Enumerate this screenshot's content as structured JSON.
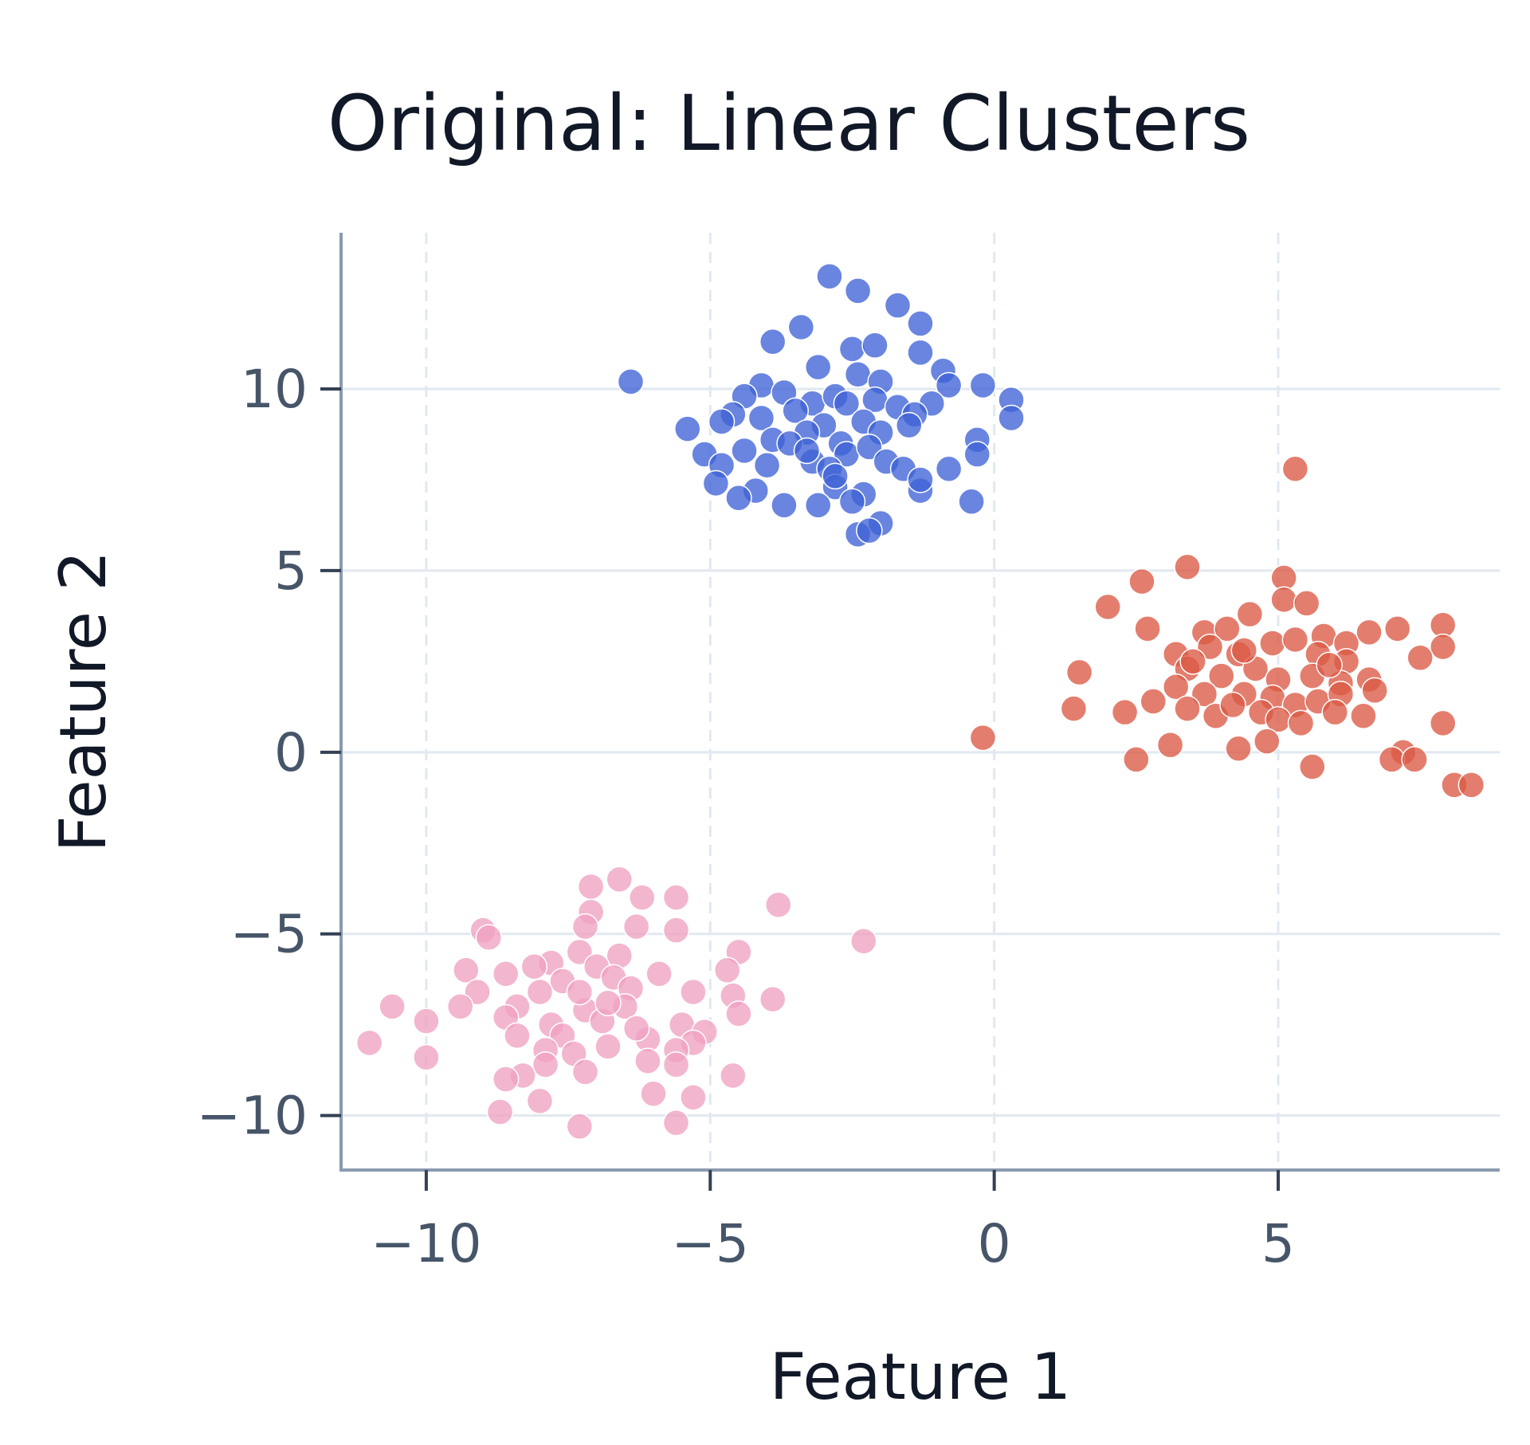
{
  "chart_data": {
    "type": "scatter",
    "title": "Original: Linear Clusters",
    "xlabel": "Feature 1",
    "ylabel": "Feature 2",
    "xlim": [
      -11.5,
      8.9
    ],
    "ylim": [
      -11.5,
      14.3
    ],
    "xticks": [
      -10,
      -5,
      0,
      5
    ],
    "yticks": [
      -10,
      -5,
      0,
      5,
      10
    ],
    "xtick_labels": [
      "−10",
      "−5",
      "0",
      "5"
    ],
    "ytick_labels": [
      "−10",
      "−5",
      "0",
      "5",
      "10"
    ],
    "grid": true,
    "legend": false,
    "series": [
      {
        "color": "#3F63D6",
        "points": [
          [
            -2.9,
            13.1
          ],
          [
            -2.4,
            12.7
          ],
          [
            -1.7,
            12.3
          ],
          [
            -1.3,
            11.8
          ],
          [
            -3.4,
            11.7
          ],
          [
            -3.9,
            11.3
          ],
          [
            -2.5,
            11.1
          ],
          [
            -2.1,
            11.2
          ],
          [
            -1.3,
            11.0
          ],
          [
            -6.4,
            10.2
          ],
          [
            -4.1,
            10.1
          ],
          [
            -3.1,
            10.6
          ],
          [
            -2.4,
            10.4
          ],
          [
            -0.9,
            10.5
          ],
          [
            -0.8,
            10.1
          ],
          [
            -0.2,
            10.1
          ],
          [
            -2.0,
            10.2
          ],
          [
            -4.4,
            9.8
          ],
          [
            -3.7,
            9.9
          ],
          [
            -3.2,
            9.6
          ],
          [
            -2.8,
            9.8
          ],
          [
            -2.6,
            9.6
          ],
          [
            -2.1,
            9.7
          ],
          [
            -1.7,
            9.5
          ],
          [
            -1.1,
            9.6
          ],
          [
            0.3,
            9.7
          ],
          [
            -4.6,
            9.3
          ],
          [
            -4.1,
            9.2
          ],
          [
            -3.5,
            9.4
          ],
          [
            -3.0,
            9.0
          ],
          [
            -2.3,
            9.1
          ],
          [
            -1.4,
            9.3
          ],
          [
            0.3,
            9.2
          ],
          [
            -5.4,
            8.9
          ],
          [
            -4.8,
            9.1
          ],
          [
            -3.9,
            8.6
          ],
          [
            -3.3,
            8.8
          ],
          [
            -2.7,
            8.5
          ],
          [
            -2.0,
            8.8
          ],
          [
            -0.3,
            8.6
          ],
          [
            -5.1,
            8.2
          ],
          [
            -4.4,
            8.3
          ],
          [
            -3.6,
            8.5
          ],
          [
            -2.6,
            8.2
          ],
          [
            -2.2,
            8.4
          ],
          [
            -1.9,
            8.0
          ],
          [
            -0.3,
            8.2
          ],
          [
            -4.8,
            7.9
          ],
          [
            -4.0,
            7.9
          ],
          [
            -3.2,
            8.0
          ],
          [
            -2.9,
            7.8
          ],
          [
            -1.6,
            7.8
          ],
          [
            -0.8,
            7.8
          ],
          [
            -4.9,
            7.4
          ],
          [
            -4.2,
            7.2
          ],
          [
            -2.8,
            7.3
          ],
          [
            -2.3,
            7.1
          ],
          [
            -1.3,
            7.2
          ],
          [
            -1.3,
            7.5
          ],
          [
            -4.5,
            7.0
          ],
          [
            -3.7,
            6.8
          ],
          [
            -3.1,
            6.8
          ],
          [
            -2.5,
            6.9
          ],
          [
            -0.4,
            6.9
          ],
          [
            -2.0,
            6.3
          ],
          [
            -2.4,
            6.0
          ],
          [
            -2.2,
            6.1
          ],
          [
            -2.8,
            7.6
          ],
          [
            -3.3,
            8.3
          ],
          [
            -1.5,
            9.0
          ]
        ]
      },
      {
        "color": "#DB5A45",
        "points": [
          [
            5.3,
            7.8
          ],
          [
            3.4,
            5.1
          ],
          [
            2.6,
            4.7
          ],
          [
            5.1,
            4.8
          ],
          [
            5.1,
            4.2
          ],
          [
            5.5,
            4.1
          ],
          [
            2.0,
            4.0
          ],
          [
            4.5,
            3.8
          ],
          [
            7.9,
            3.5
          ],
          [
            2.7,
            3.4
          ],
          [
            3.7,
            3.3
          ],
          [
            4.1,
            3.4
          ],
          [
            4.9,
            3.0
          ],
          [
            5.3,
            3.1
          ],
          [
            5.8,
            3.2
          ],
          [
            6.2,
            3.0
          ],
          [
            6.6,
            3.3
          ],
          [
            7.1,
            3.4
          ],
          [
            7.9,
            2.9
          ],
          [
            3.2,
            2.7
          ],
          [
            3.8,
            2.9
          ],
          [
            4.3,
            2.7
          ],
          [
            5.7,
            2.7
          ],
          [
            6.2,
            2.5
          ],
          [
            7.5,
            2.6
          ],
          [
            1.5,
            2.2
          ],
          [
            3.4,
            2.3
          ],
          [
            4.0,
            2.1
          ],
          [
            4.6,
            2.3
          ],
          [
            5.0,
            2.0
          ],
          [
            5.6,
            2.1
          ],
          [
            6.1,
            1.9
          ],
          [
            6.6,
            2.0
          ],
          [
            3.2,
            1.8
          ],
          [
            3.7,
            1.6
          ],
          [
            4.4,
            1.6
          ],
          [
            4.9,
            1.5
          ],
          [
            5.3,
            1.3
          ],
          [
            5.7,
            1.4
          ],
          [
            6.1,
            1.6
          ],
          [
            6.7,
            1.7
          ],
          [
            1.4,
            1.2
          ],
          [
            2.3,
            1.1
          ],
          [
            2.8,
            1.4
          ],
          [
            3.4,
            1.2
          ],
          [
            3.9,
            1.0
          ],
          [
            4.2,
            1.3
          ],
          [
            4.7,
            1.1
          ],
          [
            5.0,
            0.9
          ],
          [
            5.4,
            0.8
          ],
          [
            6.0,
            1.1
          ],
          [
            6.5,
            1.0
          ],
          [
            7.9,
            0.8
          ],
          [
            -0.2,
            0.4
          ],
          [
            3.1,
            0.2
          ],
          [
            4.3,
            0.1
          ],
          [
            4.8,
            0.3
          ],
          [
            7.2,
            0.0
          ],
          [
            2.5,
            -0.2
          ],
          [
            7.0,
            -0.2
          ],
          [
            7.4,
            -0.2
          ],
          [
            5.6,
            -0.4
          ],
          [
            8.1,
            -0.9
          ],
          [
            8.4,
            -0.9
          ],
          [
            4.4,
            2.8
          ],
          [
            3.5,
            2.5
          ],
          [
            5.9,
            2.4
          ]
        ]
      },
      {
        "color": "#F0A2C2",
        "points": [
          [
            -6.6,
            -3.5
          ],
          [
            -7.1,
            -3.7
          ],
          [
            -5.6,
            -4.0
          ],
          [
            -6.2,
            -4.0
          ],
          [
            -3.8,
            -4.2
          ],
          [
            -7.1,
            -4.4
          ],
          [
            -7.2,
            -4.8
          ],
          [
            -6.3,
            -4.8
          ],
          [
            -5.6,
            -4.9
          ],
          [
            -9.0,
            -4.9
          ],
          [
            -8.9,
            -5.1
          ],
          [
            -2.3,
            -5.2
          ],
          [
            -7.3,
            -5.5
          ],
          [
            -6.6,
            -5.6
          ],
          [
            -4.5,
            -5.5
          ],
          [
            -7.8,
            -5.8
          ],
          [
            -7.0,
            -5.9
          ],
          [
            -9.3,
            -6.0
          ],
          [
            -8.6,
            -6.1
          ],
          [
            -8.1,
            -5.9
          ],
          [
            -6.7,
            -6.2
          ],
          [
            -5.9,
            -6.1
          ],
          [
            -4.7,
            -6.0
          ],
          [
            -7.6,
            -6.3
          ],
          [
            -6.4,
            -6.5
          ],
          [
            -8.0,
            -6.6
          ],
          [
            -9.1,
            -6.6
          ],
          [
            -5.3,
            -6.6
          ],
          [
            -4.6,
            -6.7
          ],
          [
            -3.9,
            -6.8
          ],
          [
            -9.4,
            -7.0
          ],
          [
            -10.6,
            -7.0
          ],
          [
            -8.4,
            -7.0
          ],
          [
            -7.2,
            -7.1
          ],
          [
            -6.5,
            -7.0
          ],
          [
            -4.5,
            -7.2
          ],
          [
            -10.0,
            -7.4
          ],
          [
            -8.6,
            -7.3
          ],
          [
            -7.8,
            -7.5
          ],
          [
            -6.9,
            -7.4
          ],
          [
            -5.5,
            -7.5
          ],
          [
            -5.1,
            -7.7
          ],
          [
            -8.4,
            -7.8
          ],
          [
            -7.6,
            -7.8
          ],
          [
            -6.1,
            -7.9
          ],
          [
            -5.3,
            -8.0
          ],
          [
            -11.0,
            -8.0
          ],
          [
            -7.9,
            -8.2
          ],
          [
            -6.8,
            -8.1
          ],
          [
            -5.6,
            -8.2
          ],
          [
            -10.0,
            -8.4
          ],
          [
            -7.4,
            -8.3
          ],
          [
            -6.1,
            -8.5
          ],
          [
            -5.6,
            -8.6
          ],
          [
            -7.9,
            -8.6
          ],
          [
            -7.2,
            -8.8
          ],
          [
            -8.3,
            -8.9
          ],
          [
            -8.6,
            -9.0
          ],
          [
            -4.6,
            -8.9
          ],
          [
            -6.0,
            -9.4
          ],
          [
            -5.3,
            -9.5
          ],
          [
            -8.0,
            -9.6
          ],
          [
            -8.7,
            -9.9
          ],
          [
            -7.3,
            -10.3
          ],
          [
            -5.6,
            -10.2
          ],
          [
            -6.8,
            -6.9
          ],
          [
            -6.3,
            -7.6
          ],
          [
            -7.3,
            -6.6
          ]
        ]
      }
    ]
  }
}
